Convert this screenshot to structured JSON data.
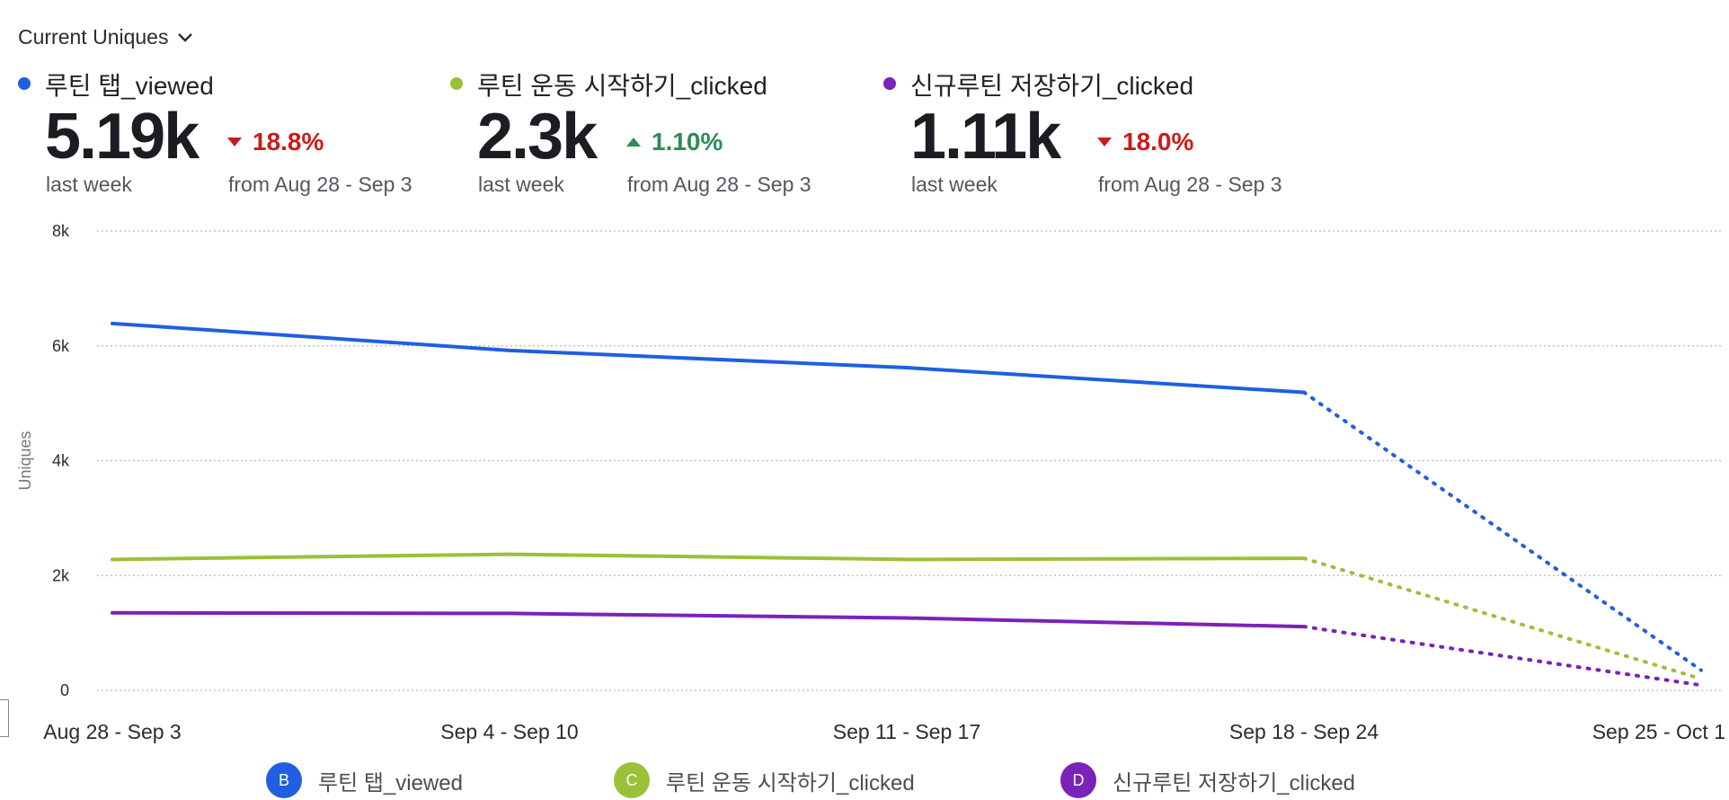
{
  "header": {
    "metric_label": "Current Uniques"
  },
  "kpis": [
    {
      "name": "루틴 탭_viewed",
      "value": "5.19k",
      "caption": "last week",
      "change": "18.8%",
      "direction": "down",
      "compare": "from Aug 28 - Sep 3",
      "color": "#1f5fe0"
    },
    {
      "name": "루틴 운동 시작하기_clicked",
      "value": "2.3k",
      "caption": "last week",
      "change": "1.10%",
      "direction": "up",
      "compare": "from Aug 28 - Sep 3",
      "color": "#9bc03a"
    },
    {
      "name": "신규루틴 저장하기_clicked",
      "value": "1.11k",
      "caption": "last week",
      "change": "18.0%",
      "direction": "down",
      "compare": "from Aug 28 - Sep 3",
      "color": "#7b22b8"
    }
  ],
  "legend": [
    {
      "badge": "B",
      "label": "루틴 탭_viewed",
      "color": "#1f5fe0"
    },
    {
      "badge": "C",
      "label": "루틴 운동 시작하기_clicked",
      "color": "#9bc03a"
    },
    {
      "badge": "D",
      "label": "신규루틴 저장하기_clicked",
      "color": "#7b22b8"
    }
  ],
  "chart_data": {
    "type": "line",
    "x": [
      "Aug 28 - Sep 3",
      "Sep 4 - Sep 10",
      "Sep 11 - Sep 17",
      "Sep 18 - Sep 24",
      "Sep 25 - Oct 1"
    ],
    "ylabel": "Uniques",
    "ylim": [
      0,
      8000
    ],
    "yticks": [
      0,
      2000,
      4000,
      6000,
      8000
    ],
    "ytick_labels": [
      "0",
      "2k",
      "4k",
      "6k",
      "8k"
    ],
    "grid": true,
    "incomplete_last_period": true,
    "series": [
      {
        "name": "루틴 탭_viewed",
        "color": "#1f5fe0",
        "values": [
          6390,
          5920,
          5620,
          5190,
          350
        ]
      },
      {
        "name": "루틴 운동 시작하기_clicked",
        "color": "#9bc03a",
        "values": [
          2280,
          2370,
          2280,
          2300,
          200
        ]
      },
      {
        "name": "신규루틴 저장하기_clicked",
        "color": "#7b22b8",
        "values": [
          1350,
          1340,
          1260,
          1110,
          90
        ]
      }
    ]
  }
}
